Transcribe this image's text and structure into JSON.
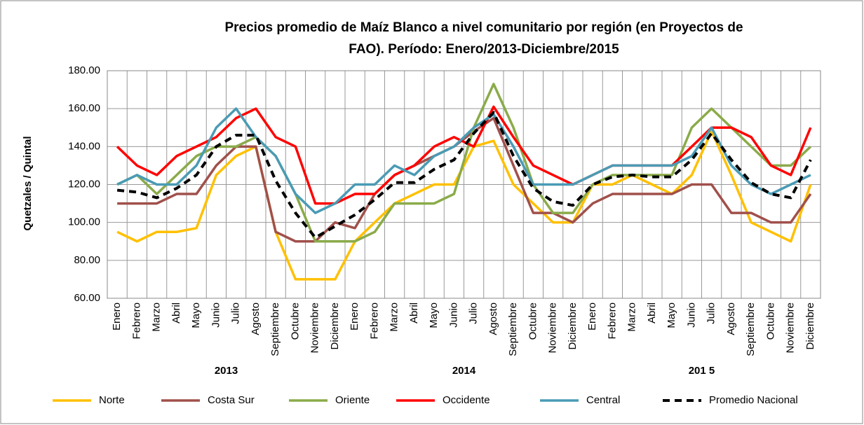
{
  "chart_data": {
    "type": "line",
    "title": [
      "Precios promedio de Maíz Blanco a nivel comunitario por región  (en Proyectos de",
      "FAO). Período: Enero/2013-Diciembre/2015"
    ],
    "y_label": "Quetzales / Quintal",
    "categories": [
      "Enero",
      "Febrero",
      "Marzo",
      "Abril",
      "Mayo",
      "Junio",
      "Julio",
      "Agosto",
      "Septiembre",
      "Octubre",
      "Noviembre",
      "Diciembre",
      "Enero",
      "Febrero",
      "Marzo",
      "Abril",
      "Mayo",
      "Junio",
      "Julio",
      "Agosto",
      "Septiembre",
      "Octubre",
      "Noviembre",
      "Diciembre",
      "Enero",
      "Febrero",
      "Marzo",
      "Abril",
      "Mayo",
      "Junio",
      "Julio",
      "Agosto",
      "Septiembre",
      "Octubre",
      "Noviembre",
      "Diciembre"
    ],
    "years": [
      "2013",
      "2014",
      "201 5"
    ],
    "ylim": [
      60,
      180
    ],
    "yticks": [
      {
        "value": 60,
        "label": "60.00"
      },
      {
        "value": 80,
        "label": "80.00"
      },
      {
        "value": 100,
        "label": "100.00"
      },
      {
        "value": 120,
        "label": "120.00"
      },
      {
        "value": 140,
        "label": "140.00"
      },
      {
        "value": 160,
        "label": "160.00"
      },
      {
        "value": 180,
        "label": "180.00"
      }
    ],
    "grid": true,
    "legend": "bottom",
    "series": [
      {
        "name": "Norte",
        "color": "#ffc000",
        "style": "solid",
        "values": [
          95,
          90,
          95,
          95,
          97,
          125,
          135,
          140,
          95,
          70,
          70,
          70,
          90,
          100,
          110,
          115,
          120,
          120,
          140,
          143,
          120,
          110,
          100,
          100,
          120,
          120,
          125,
          120,
          115,
          125,
          148,
          125,
          100,
          95,
          90,
          120
        ]
      },
      {
        "name": "Costa Sur",
        "color": "#a0504b",
        "style": "solid",
        "values": [
          110,
          110,
          110,
          115,
          115,
          130,
          140,
          140,
          95,
          90,
          90,
          100,
          97,
          115,
          125,
          130,
          135,
          140,
          148,
          155,
          130,
          105,
          105,
          100,
          110,
          115,
          115,
          115,
          115,
          120,
          120,
          105,
          105,
          100,
          100,
          115
        ]
      },
      {
        "name": "Oriente",
        "color": "#8aab4a",
        "style": "solid",
        "values": [
          120,
          125,
          115,
          125,
          135,
          140,
          140,
          145,
          135,
          115,
          90,
          90,
          90,
          95,
          110,
          110,
          110,
          115,
          150,
          173,
          150,
          120,
          105,
          105,
          120,
          125,
          125,
          125,
          125,
          150,
          160,
          150,
          140,
          130,
          130,
          140
        ]
      },
      {
        "name": "Occidente",
        "color": "#ff0000",
        "style": "solid",
        "values": [
          140,
          130,
          125,
          135,
          140,
          145,
          155,
          160,
          145,
          140,
          110,
          110,
          115,
          115,
          125,
          130,
          140,
          145,
          140,
          161,
          145,
          130,
          125,
          120,
          125,
          130,
          130,
          130,
          130,
          140,
          150,
          150,
          145,
          130,
          125,
          150
        ]
      },
      {
        "name": "Central",
        "color": "#4a9bb5",
        "style": "solid",
        "values": [
          120,
          125,
          120,
          120,
          130,
          150,
          160,
          145,
          135,
          115,
          105,
          110,
          120,
          120,
          130,
          125,
          135,
          140,
          150,
          157,
          140,
          120,
          120,
          120,
          125,
          130,
          130,
          130,
          130,
          135,
          150,
          130,
          120,
          115,
          120,
          125
        ]
      },
      {
        "name": "Promedio Nacional",
        "color": "#000000",
        "style": "dashed",
        "values": [
          117,
          116,
          113,
          118,
          125,
          140,
          146,
          146,
          122,
          105,
          92,
          98,
          104,
          112,
          121,
          121,
          128,
          133,
          147,
          158,
          135,
          118,
          111,
          109,
          120,
          124,
          125,
          124,
          124,
          133,
          147,
          133,
          121,
          115,
          113,
          133
        ]
      }
    ]
  }
}
